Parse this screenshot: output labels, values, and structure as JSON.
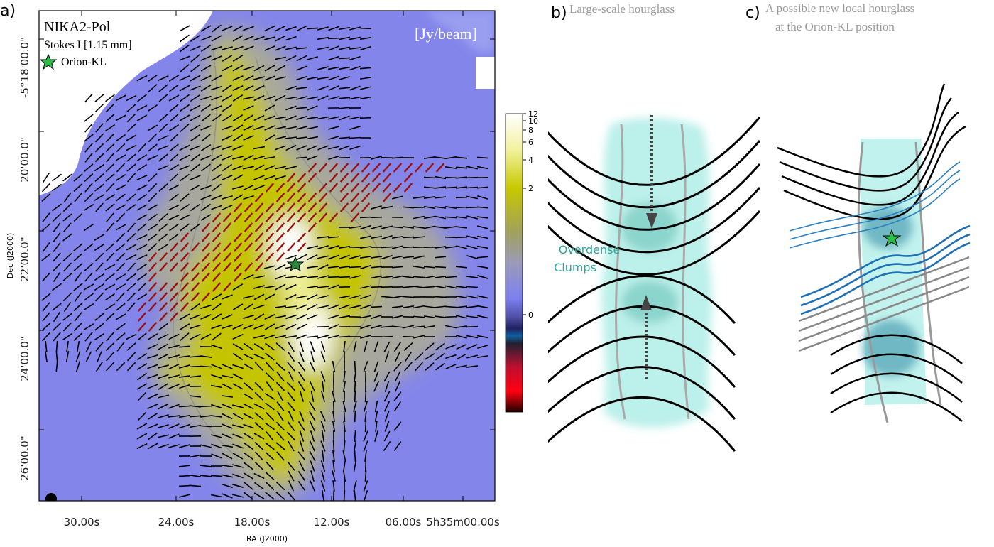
{
  "panel_a": {
    "label": "a)",
    "legend": {
      "title": "NIKA2-Pol",
      "band": "Stokes I [1.15 mm]",
      "source": "Orion-KL"
    },
    "unit": "[Jy/beam]",
    "y_axis": {
      "label": "Dec (J2000)",
      "ticks": [
        "-5°18'00.0\"",
        "20'00.0\"",
        "22'00.0\"",
        "24'00.0\"",
        "26'00.0\""
      ]
    },
    "x_axis": {
      "label": "RA (J2000)",
      "ticks": [
        "30.00s",
        "24.00s",
        "18.00s",
        "12.00s",
        "06.00s",
        "5h35m00.00s"
      ]
    },
    "colorbar_ticks": [
      12,
      10,
      8,
      6,
      4,
      2,
      0
    ]
  },
  "panel_b": {
    "label": "b)",
    "title": "Large-scale hourglass",
    "annotation": [
      "Overdense",
      "Clumps"
    ]
  },
  "panel_c": {
    "label": "c)",
    "title_lines": [
      "A possible new local hourglass",
      "at the Orion-KL position"
    ]
  }
}
